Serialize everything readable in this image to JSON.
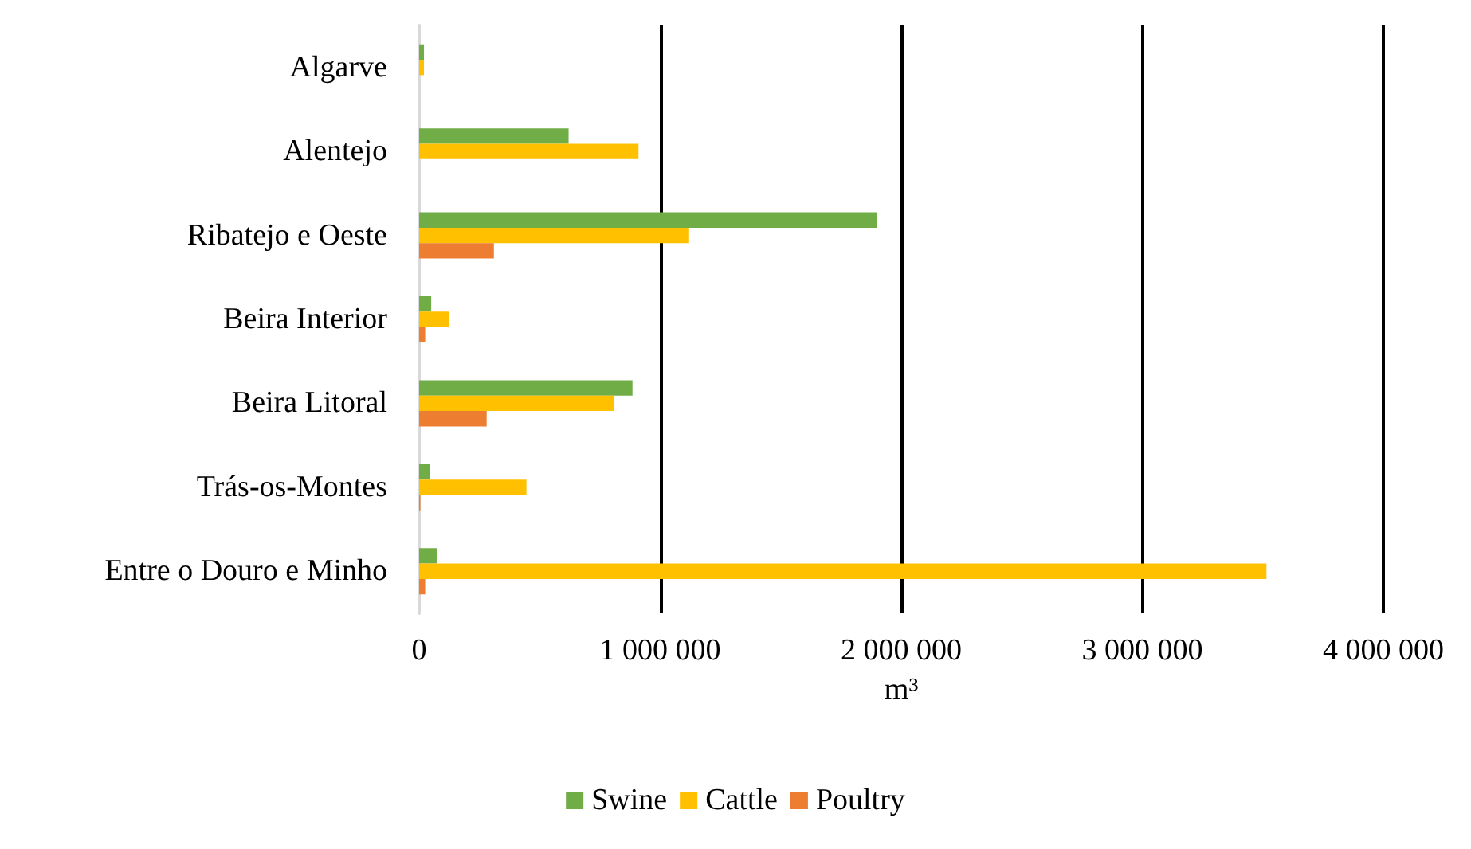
{
  "chart_data": {
    "type": "bar",
    "orientation": "horizontal",
    "xlabel": "m³",
    "categories": [
      "Algarve",
      "Alentejo",
      "Ribatejo e Oeste",
      "Beira Interior",
      "Beira Litoral",
      "Trás-os-Montes",
      "Entre o Douro e Minho"
    ],
    "series": [
      {
        "name": "Swine",
        "color": "#70ad47",
        "values": [
          20000,
          620000,
          1900000,
          50000,
          885000,
          45000,
          75000
        ]
      },
      {
        "name": "Cattle",
        "color": "#ffc000",
        "values": [
          20000,
          910000,
          1120000,
          125000,
          810000,
          445000,
          3515000
        ]
      },
      {
        "name": "Poultry",
        "color": "#ed7d31",
        "values": [
          0,
          0,
          310000,
          25000,
          280000,
          5000,
          25000
        ]
      }
    ],
    "xlim": [
      0,
      4000000
    ],
    "xticks": [
      0,
      {
        "value": 1000000,
        "label": "1 000 000"
      },
      {
        "value": 2000000,
        "label": "2 000 000"
      },
      {
        "value": 3000000,
        "label": "3 000 000"
      },
      {
        "value": 4000000,
        "label": "4 000 000"
      }
    ],
    "grid": "x",
    "legend": "bottom"
  }
}
